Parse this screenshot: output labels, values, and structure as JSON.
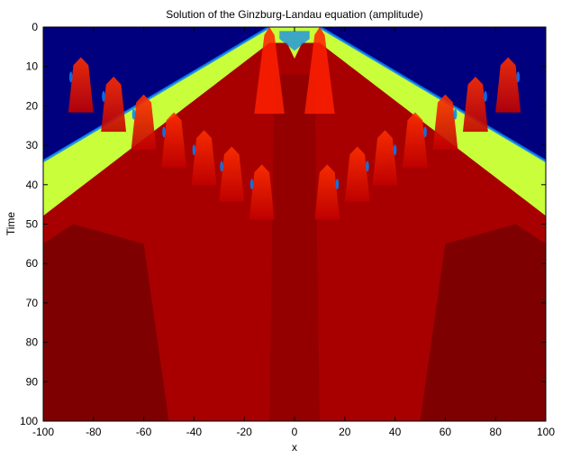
{
  "chart_data": {
    "type": "heatmap",
    "title": "Solution of the Ginzburg-Landau equation (amplitude)",
    "xlabel": "x",
    "ylabel": "Time",
    "xlim": [
      -100,
      100
    ],
    "ylim": [
      0,
      100
    ],
    "y_axis_inverted": true,
    "x_ticks": [
      -100,
      -80,
      -60,
      -40,
      -20,
      0,
      20,
      40,
      60,
      80,
      100
    ],
    "y_ticks": [
      0,
      10,
      20,
      30,
      40,
      50,
      60,
      70,
      80,
      90,
      100
    ],
    "colormap": "jet",
    "grid": false,
    "colors": {
      "background_region": "#00007f",
      "front_region": "#c8ff3a",
      "bulk_region": "#a80000",
      "dark_bulk": "#7f0000",
      "bright_red": "#ff2000",
      "edge_blue": "#0080ff"
    },
    "regions": {
      "initial_sources_x": [
        -10,
        10
      ],
      "front_speed_x_per_time": 2.6,
      "front_reaches_boundary_time": 34,
      "turbulent_band_time": [
        20,
        55
      ],
      "saturated_region_from_time": 55
    }
  }
}
